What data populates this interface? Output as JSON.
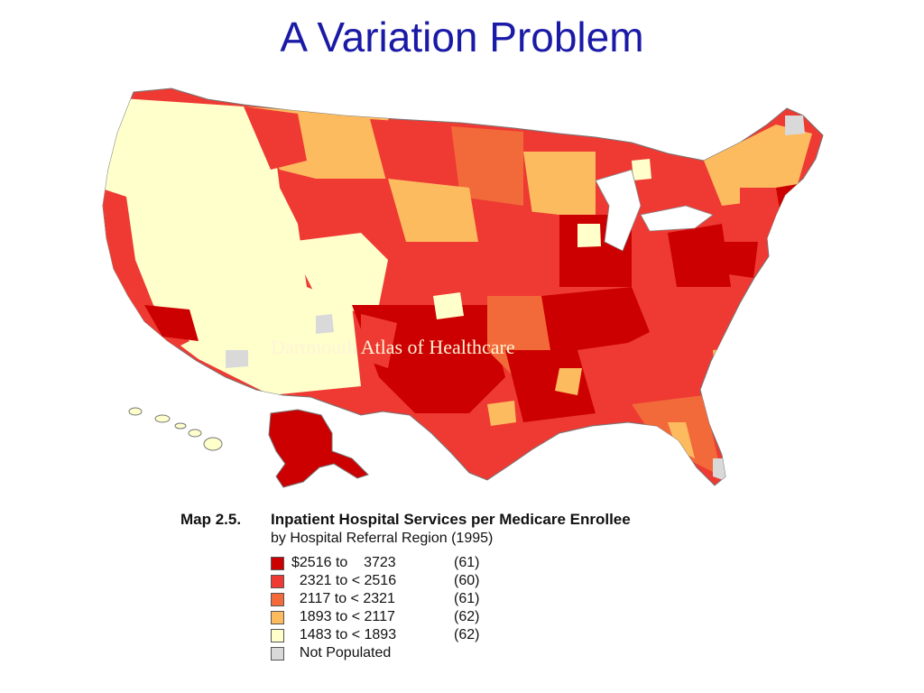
{
  "slide": {
    "title": "A Variation Problem",
    "watermark": "Dartmouth Atlas of Healthcare"
  },
  "map": {
    "number": "Map 2.5.",
    "title": "Inpatient Hospital Services per Medicare Enrollee",
    "subtitle": "by Hospital Referral Region (1995)",
    "legend": [
      {
        "range": "$2516 to    3723",
        "count": "(61)",
        "color": "#cc0000"
      },
      {
        "range": "  2321 to < 2516",
        "count": "(60)",
        "color": "#ee3a33"
      },
      {
        "range": "  2117 to < 2321",
        "count": "(61)",
        "color": "#f26a3a"
      },
      {
        "range": "  1893 to < 2117",
        "count": "(62)",
        "color": "#fdbb60"
      },
      {
        "range": "  1483 to < 1893",
        "count": "(62)",
        "color": "#ffffcc"
      },
      {
        "range": "  Not Populated",
        "count": "",
        "color": "#d9d9d9"
      }
    ]
  }
}
